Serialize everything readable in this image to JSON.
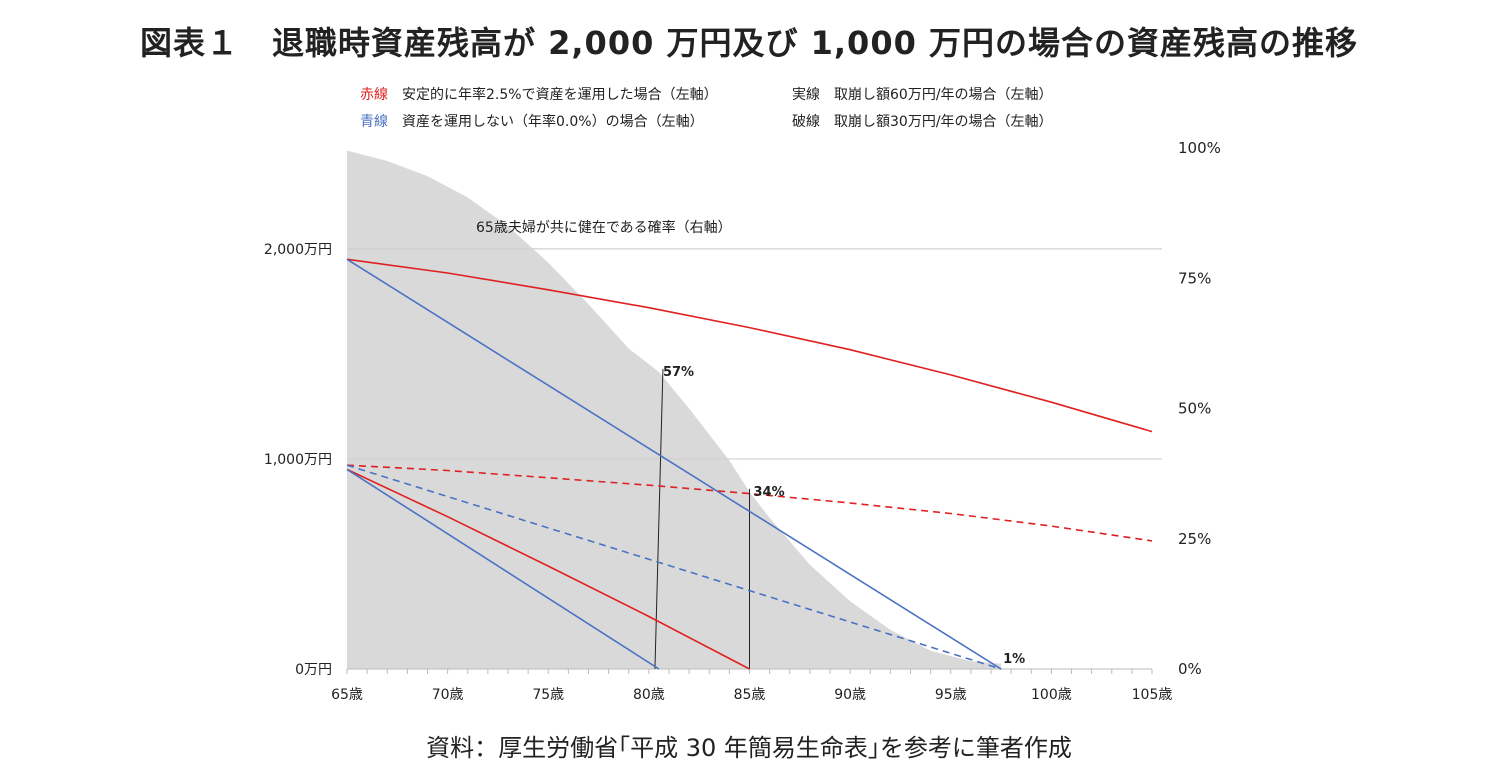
{
  "title": "図表１　退職時資産残高が 2,000 万円及び 1,000 万円の場合の資産残高の推移",
  "source": "資料：厚生労働省｢平成 30 年簡易生命表｣を参考に筆者作成",
  "legend": {
    "red_key": "赤線",
    "red_text": "安定的に年率2.5%で資産を運用した場合（左軸）",
    "blue_key": "青線",
    "blue_text": "資産を運用しない（年率0.0%）の場合（左軸）",
    "solid_key": "実線",
    "solid_text": "取崩し額60万円/年の場合（左軸）",
    "dashed_key": "破線",
    "dashed_text": "取崩し額30万円/年の場合（左軸）"
  },
  "colors": {
    "red": "#e02020",
    "blue": "#4a72c4",
    "area": "#d9d9d9",
    "grid": "#d0d0d0"
  },
  "chart_data": {
    "type": "line",
    "xlabel": "",
    "ylabel": "",
    "x_ticks": [
      "65歳",
      "70歳",
      "75歳",
      "80歳",
      "85歳",
      "90歳",
      "95歳",
      "100歳",
      "105歳"
    ],
    "x_range": [
      65,
      105
    ],
    "y_left_ticks": [
      "0万円",
      "1,000万円",
      "2,000万円"
    ],
    "y_left_range": [
      0,
      2480
    ],
    "y_right_ticks": [
      "0%",
      "25%",
      "50%",
      "75%",
      "100%"
    ],
    "y_right_range": [
      0,
      100
    ],
    "area_label": "65歳夫婦が共に健在である確率（右軸）",
    "area_series": {
      "axis": "right",
      "x": [
        65,
        67,
        69,
        71,
        73,
        75,
        77,
        79,
        80.5,
        82,
        84,
        85,
        86,
        88,
        90,
        92,
        94,
        96,
        97.5
      ],
      "values": [
        99.5,
        97.5,
        94.6,
        90.5,
        85.0,
        78.0,
        70.0,
        61.5,
        57,
        50.0,
        40.0,
        34,
        29.0,
        20.0,
        13.0,
        7.5,
        3.5,
        1.5,
        1
      ]
    },
    "series": [
      {
        "color": "red",
        "dash": false,
        "x": [
          65,
          70,
          75,
          80,
          85,
          90,
          95,
          100,
          105
        ],
        "values": [
          1950,
          1885,
          1805,
          1720,
          1625,
          1520,
          1400,
          1270,
          1130
        ]
      },
      {
        "color": "blue",
        "dash": false,
        "x": [
          65,
          97.5
        ],
        "values": [
          1950,
          0
        ]
      },
      {
        "color": "red",
        "dash": true,
        "x": [
          65,
          70,
          75,
          80,
          85,
          90,
          95,
          100,
          105
        ],
        "values": [
          970,
          945,
          910,
          875,
          835,
          790,
          740,
          680,
          610
        ]
      },
      {
        "color": "blue",
        "dash": true,
        "x": [
          65,
          97.5
        ],
        "values": [
          970,
          0
        ]
      },
      {
        "color": "red",
        "dash": false,
        "x": [
          65,
          70,
          75,
          80,
          85
        ],
        "values": [
          950,
          725,
          490,
          250,
          0
        ]
      },
      {
        "color": "blue",
        "dash": false,
        "x": [
          65,
          80.5
        ],
        "values": [
          950,
          0
        ]
      }
    ],
    "annotations": [
      {
        "label": "57%",
        "x": 80.5,
        "value": 57
      },
      {
        "label": "34%",
        "x": 85,
        "value": 34
      },
      {
        "label": "1%",
        "x": 97.5,
        "value": 1
      }
    ],
    "grid": true
  }
}
